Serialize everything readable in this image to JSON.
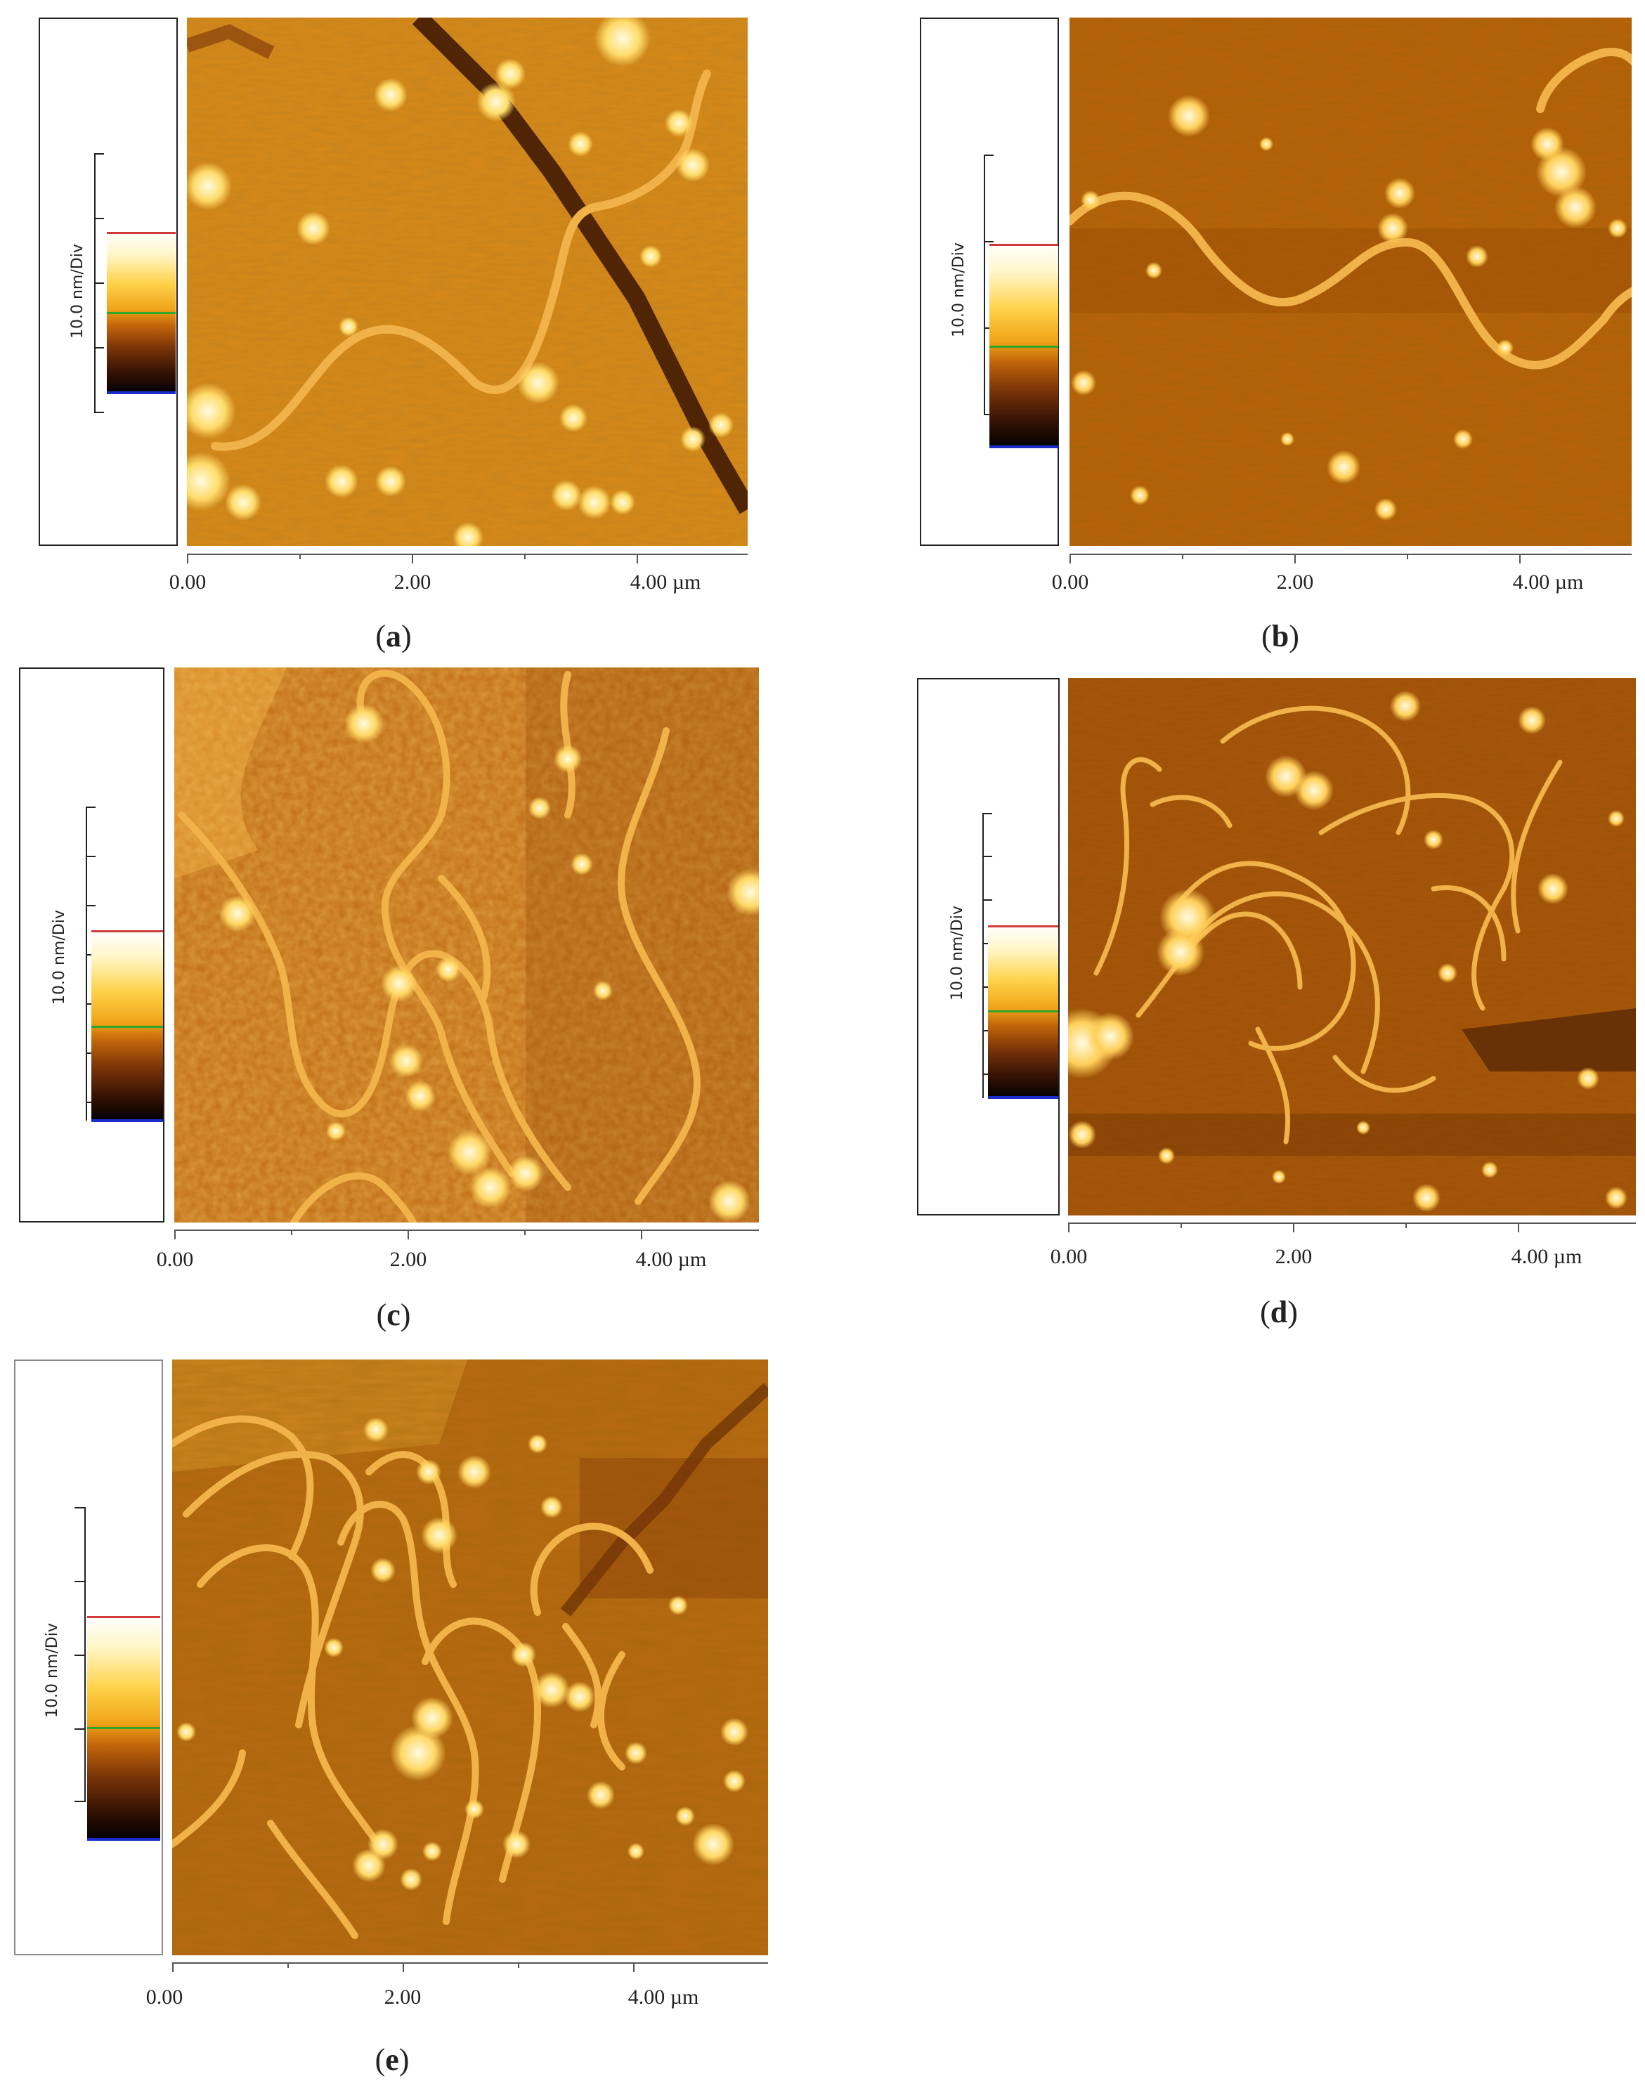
{
  "colors": {
    "substrate_a": "#d98a18",
    "substrate_b": "#b8620a",
    "substrate_c": "#d58a1e",
    "substrate_d": "#a9560c",
    "substrate_e": "#b86a12",
    "fiber": "#f2b24a",
    "particle": "#fff1b0",
    "marker_red": "#d23a3a",
    "marker_green": "#2fa52c",
    "marker_blue": "#1a2dcc"
  },
  "panels": [
    {
      "id": "a",
      "scale_label": "10.0 nm/Div",
      "x_ticks": [
        "0.00",
        "2.00",
        "4.00 µm"
      ],
      "caption_letter": "a"
    },
    {
      "id": "b",
      "scale_label": "10.0 nm/Div",
      "x_ticks": [
        "0.00",
        "2.00",
        "4.00 µm"
      ],
      "caption_letter": "b"
    },
    {
      "id": "c",
      "scale_label": "10.0 nm/Div",
      "x_ticks": [
        "0.00",
        "2.00",
        "4.00 µm"
      ],
      "caption_letter": "c"
    },
    {
      "id": "d",
      "scale_label": "10.0 nm/Div",
      "x_ticks": [
        "0.00",
        "2.00",
        "4.00 µm"
      ],
      "caption_letter": "d"
    },
    {
      "id": "e",
      "scale_label": "10.0 nm/Div",
      "x_ticks": [
        "0.00",
        "2.00",
        "4.00 µm"
      ],
      "caption_letter": "e"
    }
  ]
}
